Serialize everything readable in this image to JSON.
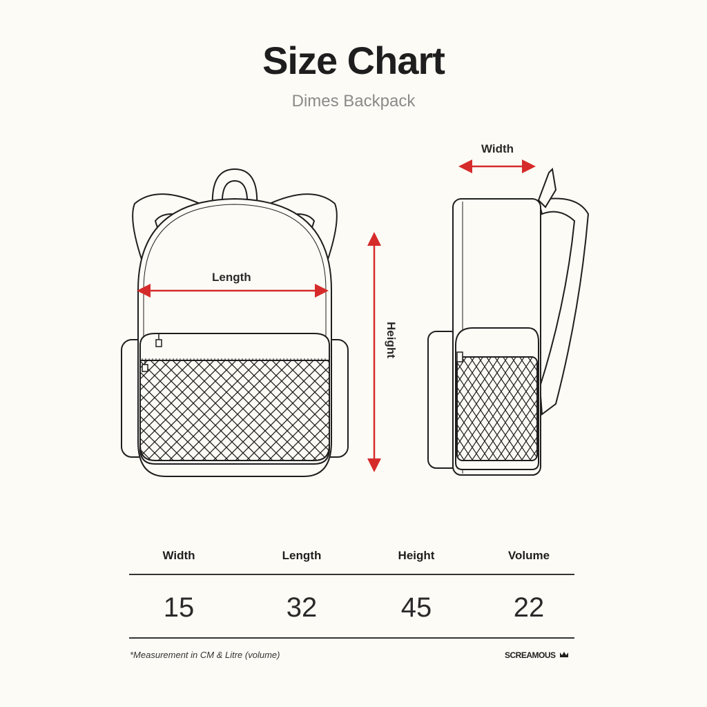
{
  "header": {
    "title": "Size Chart",
    "subtitle": "Dimes Backpack"
  },
  "diagram": {
    "labels": {
      "length": "Length",
      "height": "Height",
      "width": "Width"
    },
    "arrow_color": "#d62b2b",
    "line_color": "#1e1e1e"
  },
  "table": {
    "headers": [
      "Width",
      "Length",
      "Height",
      "Volume"
    ],
    "values": [
      "15",
      "32",
      "45",
      "22"
    ]
  },
  "footer": {
    "note": "*Measurement in CM & Litre (volume)",
    "brand": "SCREAMOUS",
    "brand_icon": "crown-icon"
  }
}
